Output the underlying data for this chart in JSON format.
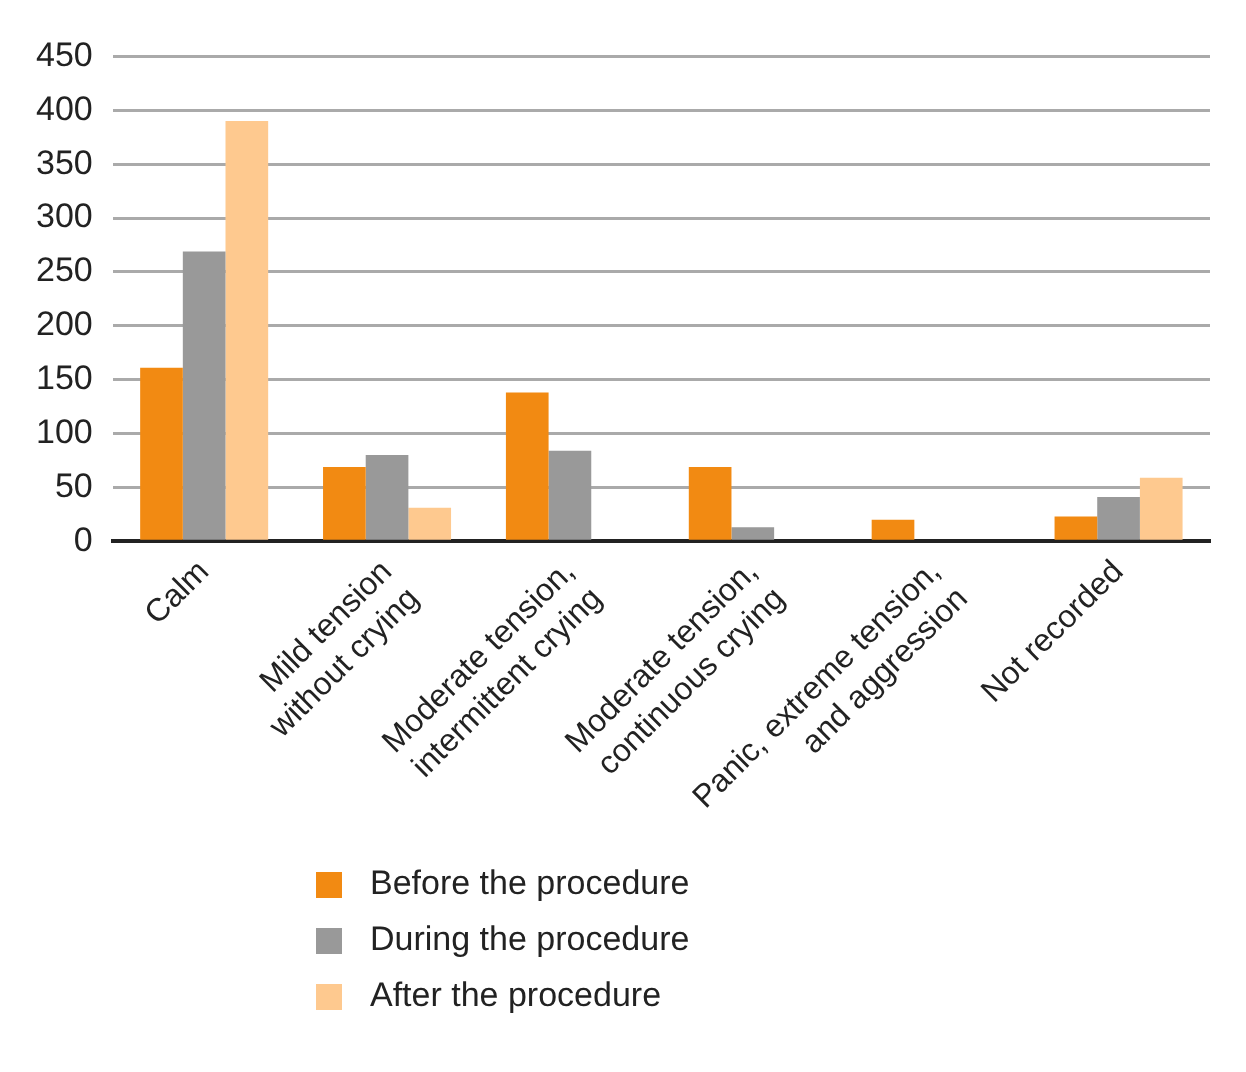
{
  "chart_data": {
    "type": "bar",
    "categories": [
      "Calm",
      "Mild tension\nwithout crying",
      "Moderate tension,\nintermittent crying",
      "Moderate tension,\ncontinuous crying",
      "Panic, extreme tension,\nand aggression",
      "Not recorded"
    ],
    "series": [
      {
        "name": "Before the procedure",
        "color": "#f28a12",
        "values": [
          161,
          69,
          138,
          69,
          20,
          23
        ]
      },
      {
        "name": "During the procedure",
        "color": "#999999",
        "values": [
          269,
          80,
          84,
          13,
          0,
          41
        ]
      },
      {
        "name": "After the procedure",
        "color": "#fec98f",
        "values": [
          390,
          31,
          0,
          0,
          0,
          59
        ]
      }
    ],
    "ylim": [
      0,
      450
    ],
    "yticks": [
      0,
      50,
      100,
      150,
      200,
      250,
      300,
      350,
      400,
      450
    ],
    "grid": "y",
    "legend": "bottom"
  }
}
